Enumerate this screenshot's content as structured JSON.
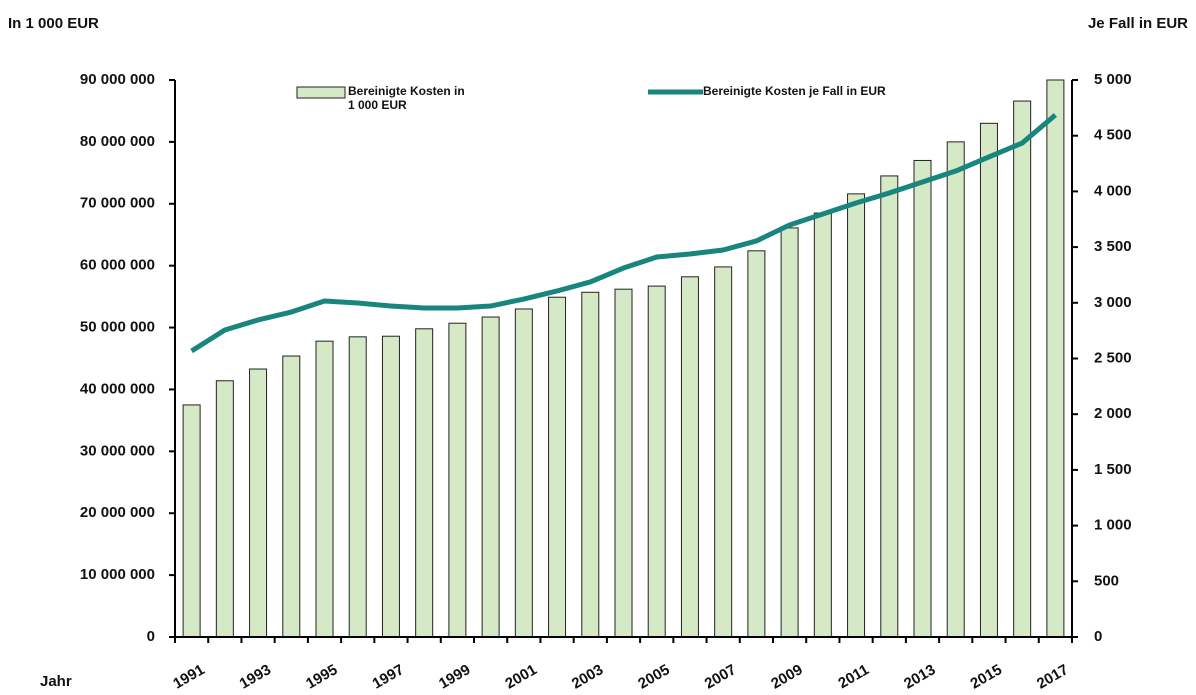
{
  "chart_data": {
    "type": "bar",
    "y_label": "In 1 000 EUR",
    "y2_label": "Je Fall in EUR",
    "x_label": "Jahr",
    "categories": [
      "1991",
      null,
      "1993",
      null,
      "1995",
      null,
      "1997",
      null,
      "1999",
      null,
      "2001",
      null,
      "2003",
      null,
      "2005",
      null,
      "2007",
      null,
      "2009",
      null,
      "2011",
      null,
      "2013",
      null,
      "2015",
      null,
      "2017"
    ],
    "series": [
      {
        "name": "Bereinigte Kosten in 1 000 EUR",
        "type": "bar",
        "axis": "y",
        "color": "#d6e9c6",
        "values": [
          37500000,
          41400000,
          43300000,
          45400000,
          47800000,
          48500000,
          48600000,
          49800000,
          50700000,
          51700000,
          53000000,
          54900000,
          55700000,
          56200000,
          56700000,
          58200000,
          59800000,
          62400000,
          66100000,
          68500000,
          71600000,
          74500000,
          77000000,
          80000000,
          83000000,
          86600000,
          90000000
        ]
      },
      {
        "name": "Bereinigte Kosten je Fall in EUR",
        "type": "line",
        "axis": "y2",
        "color": "#18857e",
        "values": [
          2567,
          2756,
          2846,
          2917,
          3016,
          2998,
          2971,
          2953,
          2953,
          2971,
          3034,
          3106,
          3187,
          3312,
          3411,
          3438,
          3474,
          3555,
          3698,
          3797,
          3896,
          3986,
          4084,
          4183,
          4309,
          4434,
          4686
        ]
      }
    ],
    "ylim": [
      0,
      90000000
    ],
    "yticks": [
      0,
      {
        "value": 10000000,
        "label": "10 000 000"
      },
      {
        "value": 20000000,
        "label": "20 000 000"
      },
      {
        "value": 30000000,
        "label": "30 000 000"
      },
      {
        "value": 40000000,
        "label": "40 000 000"
      },
      {
        "value": 50000000,
        "label": "50 000 000"
      },
      {
        "value": 60000000,
        "label": "60 000 000"
      },
      {
        "value": 70000000,
        "label": "70 000 000"
      },
      {
        "value": 80000000,
        "label": "80 000 000"
      },
      {
        "value": 90000000,
        "label": "90 000 000"
      }
    ],
    "y2lim": [
      0,
      5000
    ],
    "y2ticks": [
      0,
      500,
      {
        "value": 1000,
        "label": "1 000"
      },
      {
        "value": 1500,
        "label": "1 500"
      },
      {
        "value": 2000,
        "label": "2 000"
      },
      {
        "value": 2500,
        "label": "2 500"
      },
      {
        "value": 3000,
        "label": "3 000"
      },
      {
        "value": 3500,
        "label": "3 500"
      },
      {
        "value": 4000,
        "label": "4 000"
      },
      {
        "value": 4500,
        "label": "4 500"
      },
      {
        "value": 5000,
        "label": "5 000"
      }
    ],
    "grid": false
  }
}
